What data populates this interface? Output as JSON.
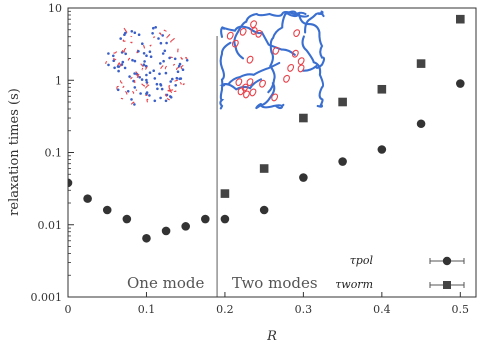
{
  "chart_data": {
    "type": "scatter",
    "xlabel": "R",
    "ylabel": "relaxation times (s)",
    "xlim": [
      0,
      0.52
    ],
    "ylim": [
      0.001,
      10
    ],
    "y_scale": "log",
    "x_ticks": [
      0,
      0.1,
      0.2,
      0.3,
      0.4,
      0.5
    ],
    "x_tick_labels": [
      "0",
      "0.1",
      "0.2",
      "0.3",
      "0.4",
      "0.5"
    ],
    "y_ticks": [
      0.001,
      0.01,
      0.1,
      1,
      10
    ],
    "y_tick_labels": [
      "0.001",
      "0.01",
      "0.1",
      "1",
      "10"
    ],
    "grid": false,
    "legend_position": "bottom-right",
    "divider_x": 0.19,
    "region_labels": [
      "One mode",
      "Two modes"
    ],
    "series": [
      {
        "name": "τ_pol",
        "marker": "circle",
        "color": "#333333",
        "x": [
          0,
          0.025,
          0.05,
          0.075,
          0.1,
          0.125,
          0.15,
          0.175,
          0.2,
          0.25,
          0.3,
          0.35,
          0.4,
          0.45,
          0.5
        ],
        "y": [
          0.038,
          0.023,
          0.016,
          0.012,
          0.0065,
          0.0082,
          0.0095,
          0.012,
          0.012,
          0.016,
          0.045,
          0.075,
          0.11,
          0.25,
          0.9
        ]
      },
      {
        "name": "τ_worm",
        "marker": "square",
        "color": "#444444",
        "x": [
          0.2,
          0.25,
          0.3,
          0.35,
          0.4,
          0.45,
          0.5
        ],
        "y": [
          0.027,
          0.06,
          0.3,
          0.5,
          0.75,
          1.7,
          7
        ]
      }
    ],
    "legend": [
      {
        "label": "τpol",
        "marker": "circle"
      },
      {
        "label": "τworm",
        "marker": "square"
      }
    ],
    "insets": [
      {
        "name": "polymer-dots-inset",
        "colors": [
          "#e8424a",
          "#3a5fc8"
        ]
      },
      {
        "name": "wormlike-chains-inset",
        "colors": [
          "#e8424a",
          "#3a6fd0"
        ]
      }
    ]
  }
}
